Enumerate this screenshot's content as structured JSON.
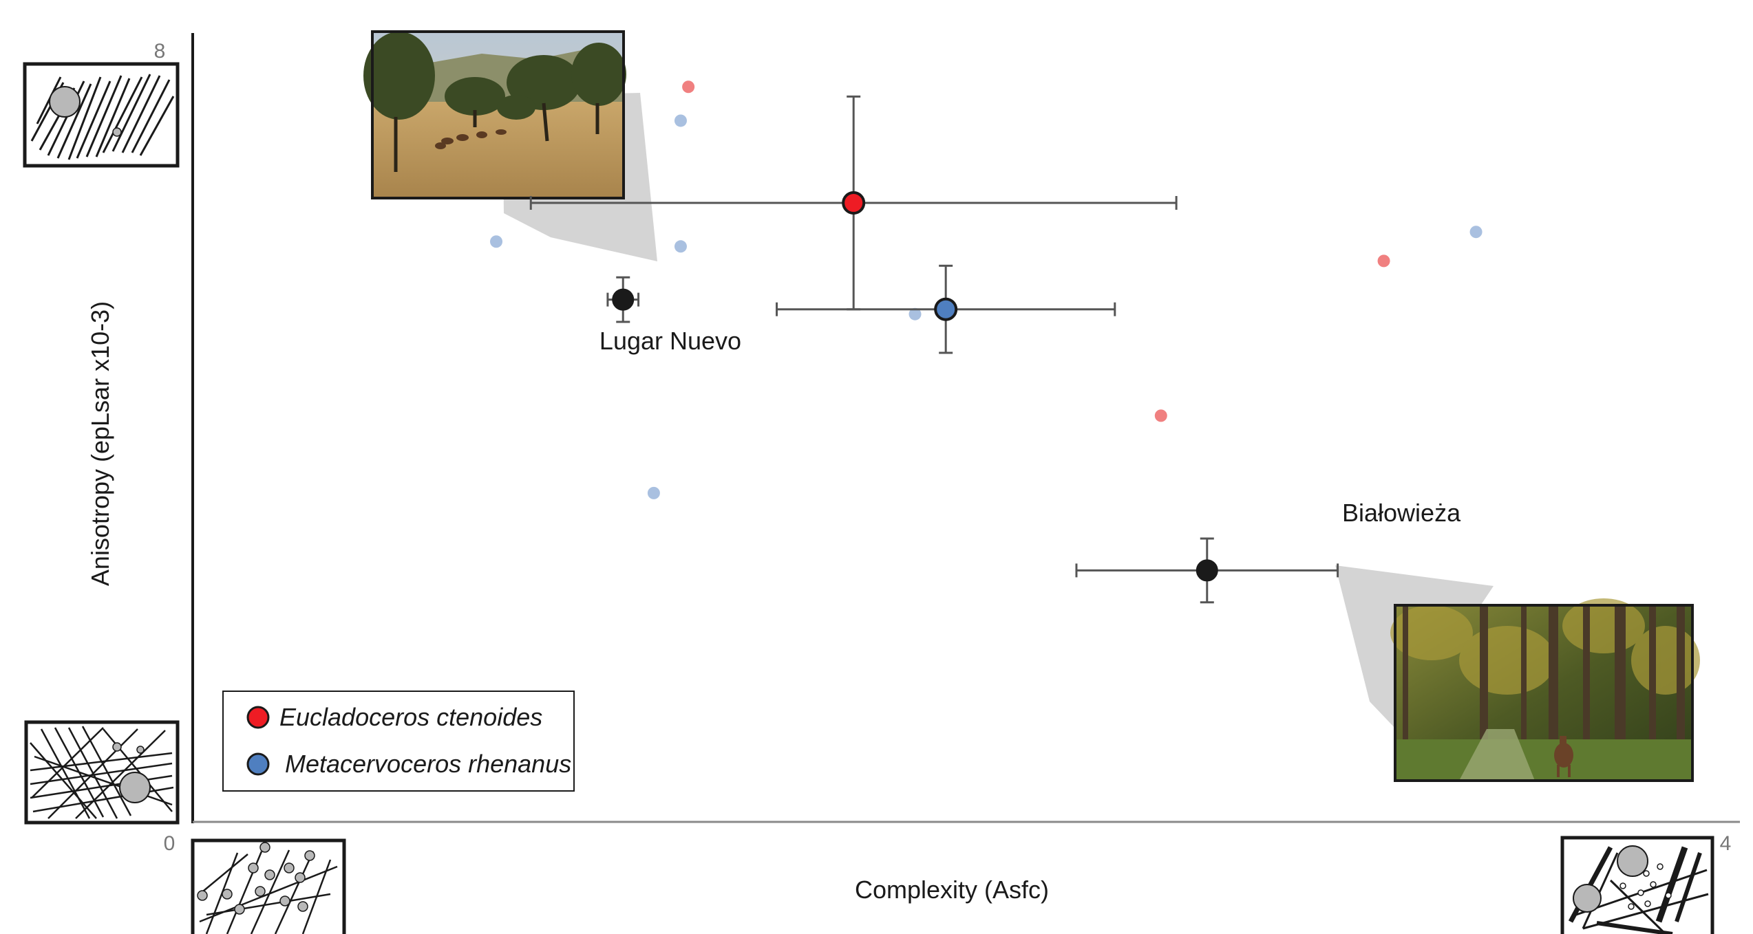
{
  "chart_data": {
    "type": "scatter",
    "xlabel": "Complexity (Asfc)",
    "ylabel": "Anisotropy (epLsar x10-3)",
    "xlim": [
      0,
      4
    ],
    "ylim": [
      0,
      8
    ],
    "x_ticks": [
      "0",
      "4"
    ],
    "y_ticks": [
      "0",
      "8"
    ],
    "grid": false,
    "legend_position": "bottom-left",
    "series": [
      {
        "name": "Eucladoceros ctenoides",
        "color": "#ee1c24",
        "individual_color": "#f08080",
        "points": [
          {
            "x": 1.29,
            "y": 7.6
          },
          {
            "x": 2.52,
            "y": 4.2
          },
          {
            "x": 3.1,
            "y": 5.8
          }
        ],
        "mean": {
          "x": 1.72,
          "y": 6.4,
          "x_err": [
            0.84,
            0.84
          ],
          "y_err": [
            1.1,
            1.1
          ]
        }
      },
      {
        "name": "Metacervoceros rhenanus",
        "color": "#4f7fc0",
        "individual_color": "#a9c0e0",
        "points": [
          {
            "x": 1.27,
            "y": 7.25
          },
          {
            "x": 0.79,
            "y": 6.0
          },
          {
            "x": 1.27,
            "y": 5.95
          },
          {
            "x": 1.88,
            "y": 5.25
          },
          {
            "x": 1.2,
            "y": 3.4
          },
          {
            "x": 3.34,
            "y": 6.1
          }
        ],
        "mean": {
          "x": 1.96,
          "y": 5.3,
          "x_err": [
            0.44,
            0.44
          ],
          "y_err": [
            0.45,
            0.45
          ]
        }
      }
    ],
    "reference_sites": [
      {
        "name": "Lugar Nuevo",
        "x": 1.12,
        "y": 5.4,
        "x_err": [
          0.04,
          0.04
        ],
        "y_err": [
          0.23,
          0.23
        ],
        "color": "#1a1a1a"
      },
      {
        "name": "Białowieża",
        "x": 2.64,
        "y": 2.6,
        "x_err": [
          0.34,
          0.34
        ],
        "y_err": [
          0.33,
          0.33
        ],
        "color": "#1a1a1a"
      }
    ]
  }
}
